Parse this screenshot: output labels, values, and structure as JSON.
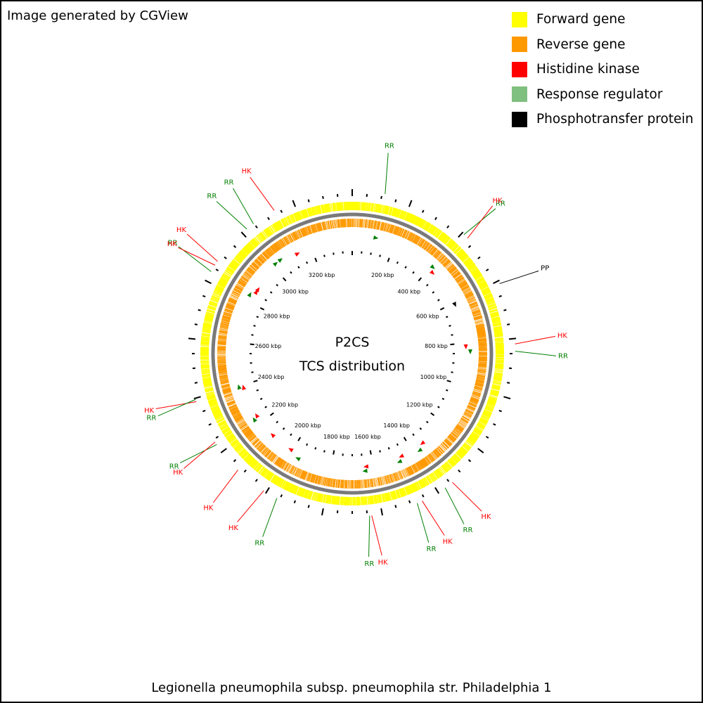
{
  "credit": "Image generated by CGView",
  "legend": [
    {
      "label": "Forward gene",
      "color": "#ffff00"
    },
    {
      "label": "Reverse gene",
      "color": "#ff9900"
    },
    {
      "label": "Histidine kinase",
      "color": "#ff0000"
    },
    {
      "label": "Response regulator",
      "color": "#7fbf7f"
    },
    {
      "label": "Phosphotransfer protein",
      "color": "#000000"
    }
  ],
  "center": {
    "line1": "P2CS",
    "line2": "TCS distribution"
  },
  "organism": "Legionella pneumophila subsp. pneumophila str. Philadelphia 1",
  "colors": {
    "forward": "#ffff00",
    "reverse": "#ff9900",
    "hk": "#ff0000",
    "rr": "#007f00",
    "pp": "#000000",
    "backbone": "#7a7a7a"
  },
  "genome_kbp": 3400,
  "tick_labels": [
    "200 kbp",
    "400 kbp",
    "600 kbp",
    "800 kbp",
    "1000 kbp",
    "1200 kbp",
    "1400 kbp",
    "1600 kbp",
    "1800 kbp",
    "2000 kbp",
    "2200 kbp",
    "2400 kbp",
    "2600 kbp",
    "2800 kbp",
    "3000 kbp",
    "3200 kbp"
  ],
  "features": [
    {
      "label": "RR",
      "type": "rr",
      "pos_kbp": 110
    },
    {
      "label": "RR",
      "type": "rr",
      "pos_kbp": 408
    },
    {
      "label": "HK",
      "type": "hk",
      "pos_kbp": 425
    },
    {
      "label": "PP",
      "type": "pp",
      "pos_kbp": 610
    },
    {
      "label": "HK",
      "type": "hk",
      "pos_kbp": 818
    },
    {
      "label": "RR",
      "type": "rr",
      "pos_kbp": 842
    },
    {
      "label": "HK",
      "type": "hk",
      "pos_kbp": 1342
    },
    {
      "label": "RR",
      "type": "rr",
      "pos_kbp": 1372
    },
    {
      "label": "HK",
      "type": "hk",
      "pos_kbp": 1460
    },
    {
      "label": "RR",
      "type": "rr",
      "pos_kbp": 1478
    },
    {
      "label": "HK",
      "type": "hk",
      "pos_kbp": 1635
    },
    {
      "label": "RR",
      "type": "rr",
      "pos_kbp": 1642
    },
    {
      "label": "RR",
      "type": "rr",
      "pos_kbp": 1960
    },
    {
      "label": "HK",
      "type": "hk",
      "pos_kbp": 2010
    },
    {
      "label": "HK",
      "type": "hk",
      "pos_kbp": 2120
    },
    {
      "label": "RR",
      "type": "rr",
      "pos_kbp": 2230
    },
    {
      "label": "HK",
      "type": "hk",
      "pos_kbp": 2240
    },
    {
      "label": "HK",
      "type": "hk",
      "pos_kbp": 2388
    },
    {
      "label": "RR",
      "type": "rr",
      "pos_kbp": 2396
    },
    {
      "label": "RR",
      "type": "rr",
      "pos_kbp": 2835
    },
    {
      "label": "HK",
      "type": "hk",
      "pos_kbp": 2860
    },
    {
      "label": "HK",
      "type": "hk",
      "pos_kbp": 2875
    },
    {
      "label": "RR",
      "type": "rr",
      "pos_kbp": 3020
    },
    {
      "label": "RR",
      "type": "rr",
      "pos_kbp": 3048
    },
    {
      "label": "HK",
      "type": "hk",
      "pos_kbp": 3130
    }
  ]
}
